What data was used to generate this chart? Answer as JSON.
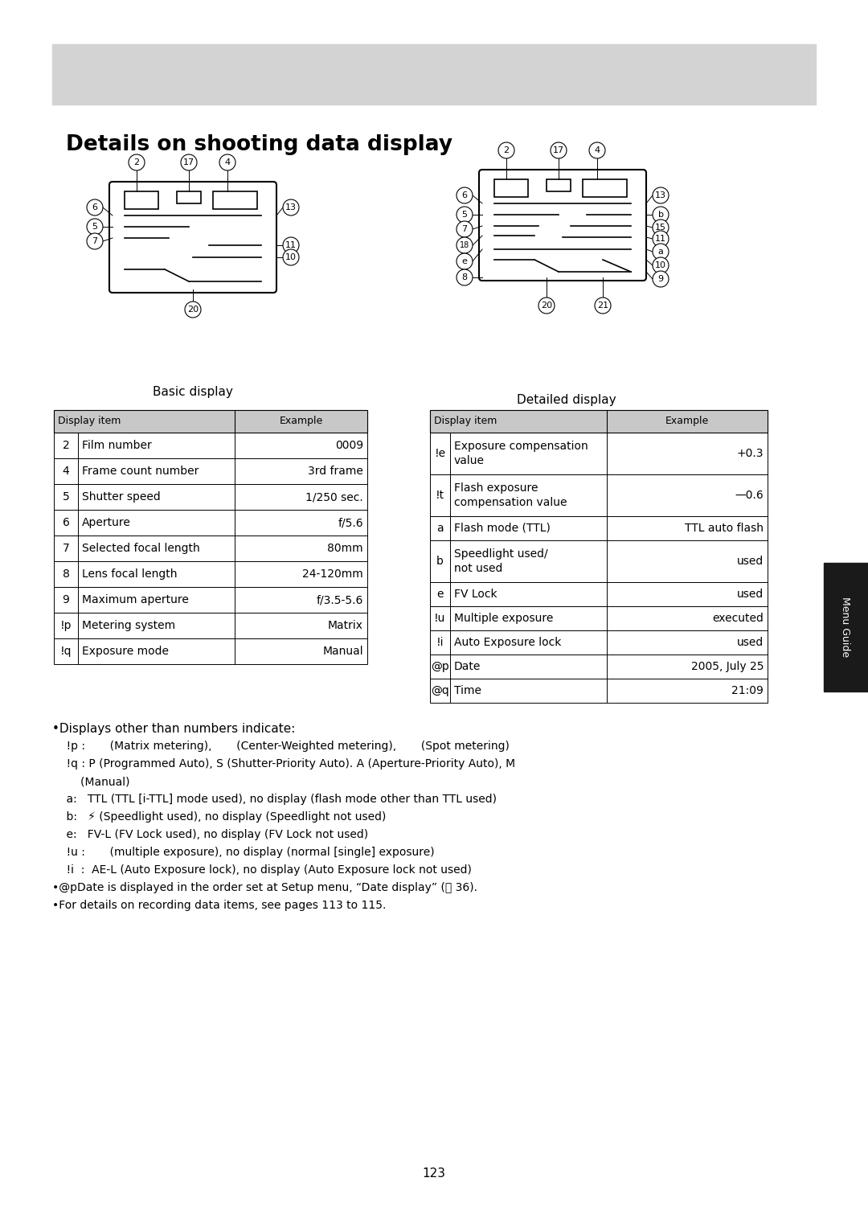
{
  "title": "Details on shooting data display",
  "bg_color": "#ffffff",
  "header_bg": "#d0d0d0",
  "table_header_bg": "#c8c8c8",
  "left_table": {
    "headers": [
      "Display item",
      "Example"
    ],
    "rows": [
      [
        "2",
        "Film number",
        "0009"
      ],
      [
        "4",
        "Frame count number",
        "3rd frame"
      ],
      [
        "5",
        "Shutter speed",
        "1/250 sec."
      ],
      [
        "6",
        "Aperture",
        "f/5.6"
      ],
      [
        "7",
        "Selected focal length",
        "80mm"
      ],
      [
        "8",
        "Lens focal length",
        "24-120mm"
      ],
      [
        "9",
        "Maximum aperture",
        "f/3.5-5.6"
      ],
      [
        "!p",
        "Metering system",
        "Matrix"
      ],
      [
        "!q",
        "Exposure mode",
        "Manual"
      ]
    ]
  },
  "right_table": {
    "headers": [
      "Display item",
      "Example"
    ],
    "rows": [
      [
        "!e",
        "Exposure compensation\nvalue",
        "+0.3"
      ],
      [
        "!t",
        "Flash exposure\ncompensation value",
        "—0.6"
      ],
      [
        "a",
        "Flash mode (TTL)",
        "TTL auto flash"
      ],
      [
        "b",
        "Speedlight used/\nnot used",
        "used"
      ],
      [
        "e",
        "FV Lock",
        "used"
      ],
      [
        "!u",
        "Multiple exposure",
        "executed"
      ],
      [
        "!i",
        "Auto Exposure lock",
        "used"
      ],
      [
        "@p",
        "Date",
        "2005, July 25"
      ],
      [
        "@q",
        "Time",
        "21:09"
      ]
    ]
  },
  "bullets": [
    "•Displays other than numbers indicate:",
    "    !p :       (Matrix metering),       (Center-Weighted metering),       (Spot metering)",
    "    !q : P (Programmed Auto), S (Shutter-Priority Auto). A (Aperture-Priority Auto), M\n        (Manual)",
    "    a:   TTL (TTL [i-TTL] mode used), no display (flash mode other than TTL used)",
    "    b:   ⚡ (Speedlight used), no display (Speedlight not used)",
    "    e:   FV-L (FV Lock used), no display (FV Lock not used)",
    "    !u :       (multiple exposure), no display (normal [single] exposure)",
    "    !i  :  AE-L (Auto Exposure lock), no display (Auto Exposure lock not used)",
    "•@pDate is displayed in the order set at Setup menu, “Date display” (📷 36).",
    "•For details on recording data items, see pages 113 to 115."
  ],
  "page_number": "123",
  "menu_guide_label": "Menu Guide"
}
